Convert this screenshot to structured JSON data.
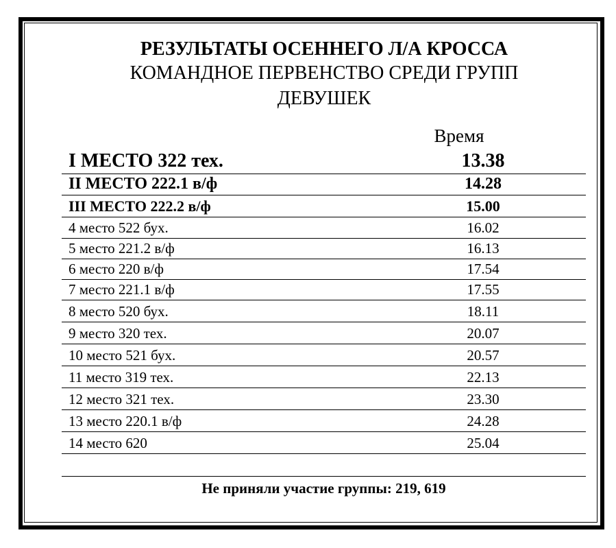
{
  "title": {
    "line1": "РЕЗУЛЬТАТЫ ОСЕННЕГО Л/А КРОССА",
    "line2": "КОМАНДНОЕ ПЕРВЕНСТВО СРЕДИ ГРУПП",
    "line3": "ДЕВУШЕК"
  },
  "column_header": "Время",
  "rows": [
    {
      "place": "I МЕСТО 322 тех.",
      "time": "13.38"
    },
    {
      "place": "II МЕСТО 222.1 в/ф",
      "time": "14.28"
    },
    {
      "place": "III МЕСТО 222.2 в/ф",
      "time": "15.00"
    },
    {
      "place": "4 место 522 бух.",
      "time": "16.02"
    },
    {
      "place": "5 место 221.2 в/ф",
      "time": "16.13"
    },
    {
      "place": "6 место 220 в/ф",
      "time": "17.54"
    },
    {
      "place": "7 место 221.1 в/ф",
      "time": "17.55"
    },
    {
      "place": "8 место 520 бух.",
      "time": "18.11"
    },
    {
      "place": "9 место 320 тех.",
      "time": "20.07"
    },
    {
      "place": "10 место 521 бух.",
      "time": "20.57"
    },
    {
      "place": "11 место 319 тех.",
      "time": "22.13"
    },
    {
      "place": "12 место 321 тех.",
      "time": "23.30"
    },
    {
      "place": "13 место 220.1 в/ф",
      "time": "24.28"
    },
    {
      "place": "14 место 620",
      "time": "25.04"
    }
  ],
  "footer": "Не приняли участие группы: 219, 619"
}
